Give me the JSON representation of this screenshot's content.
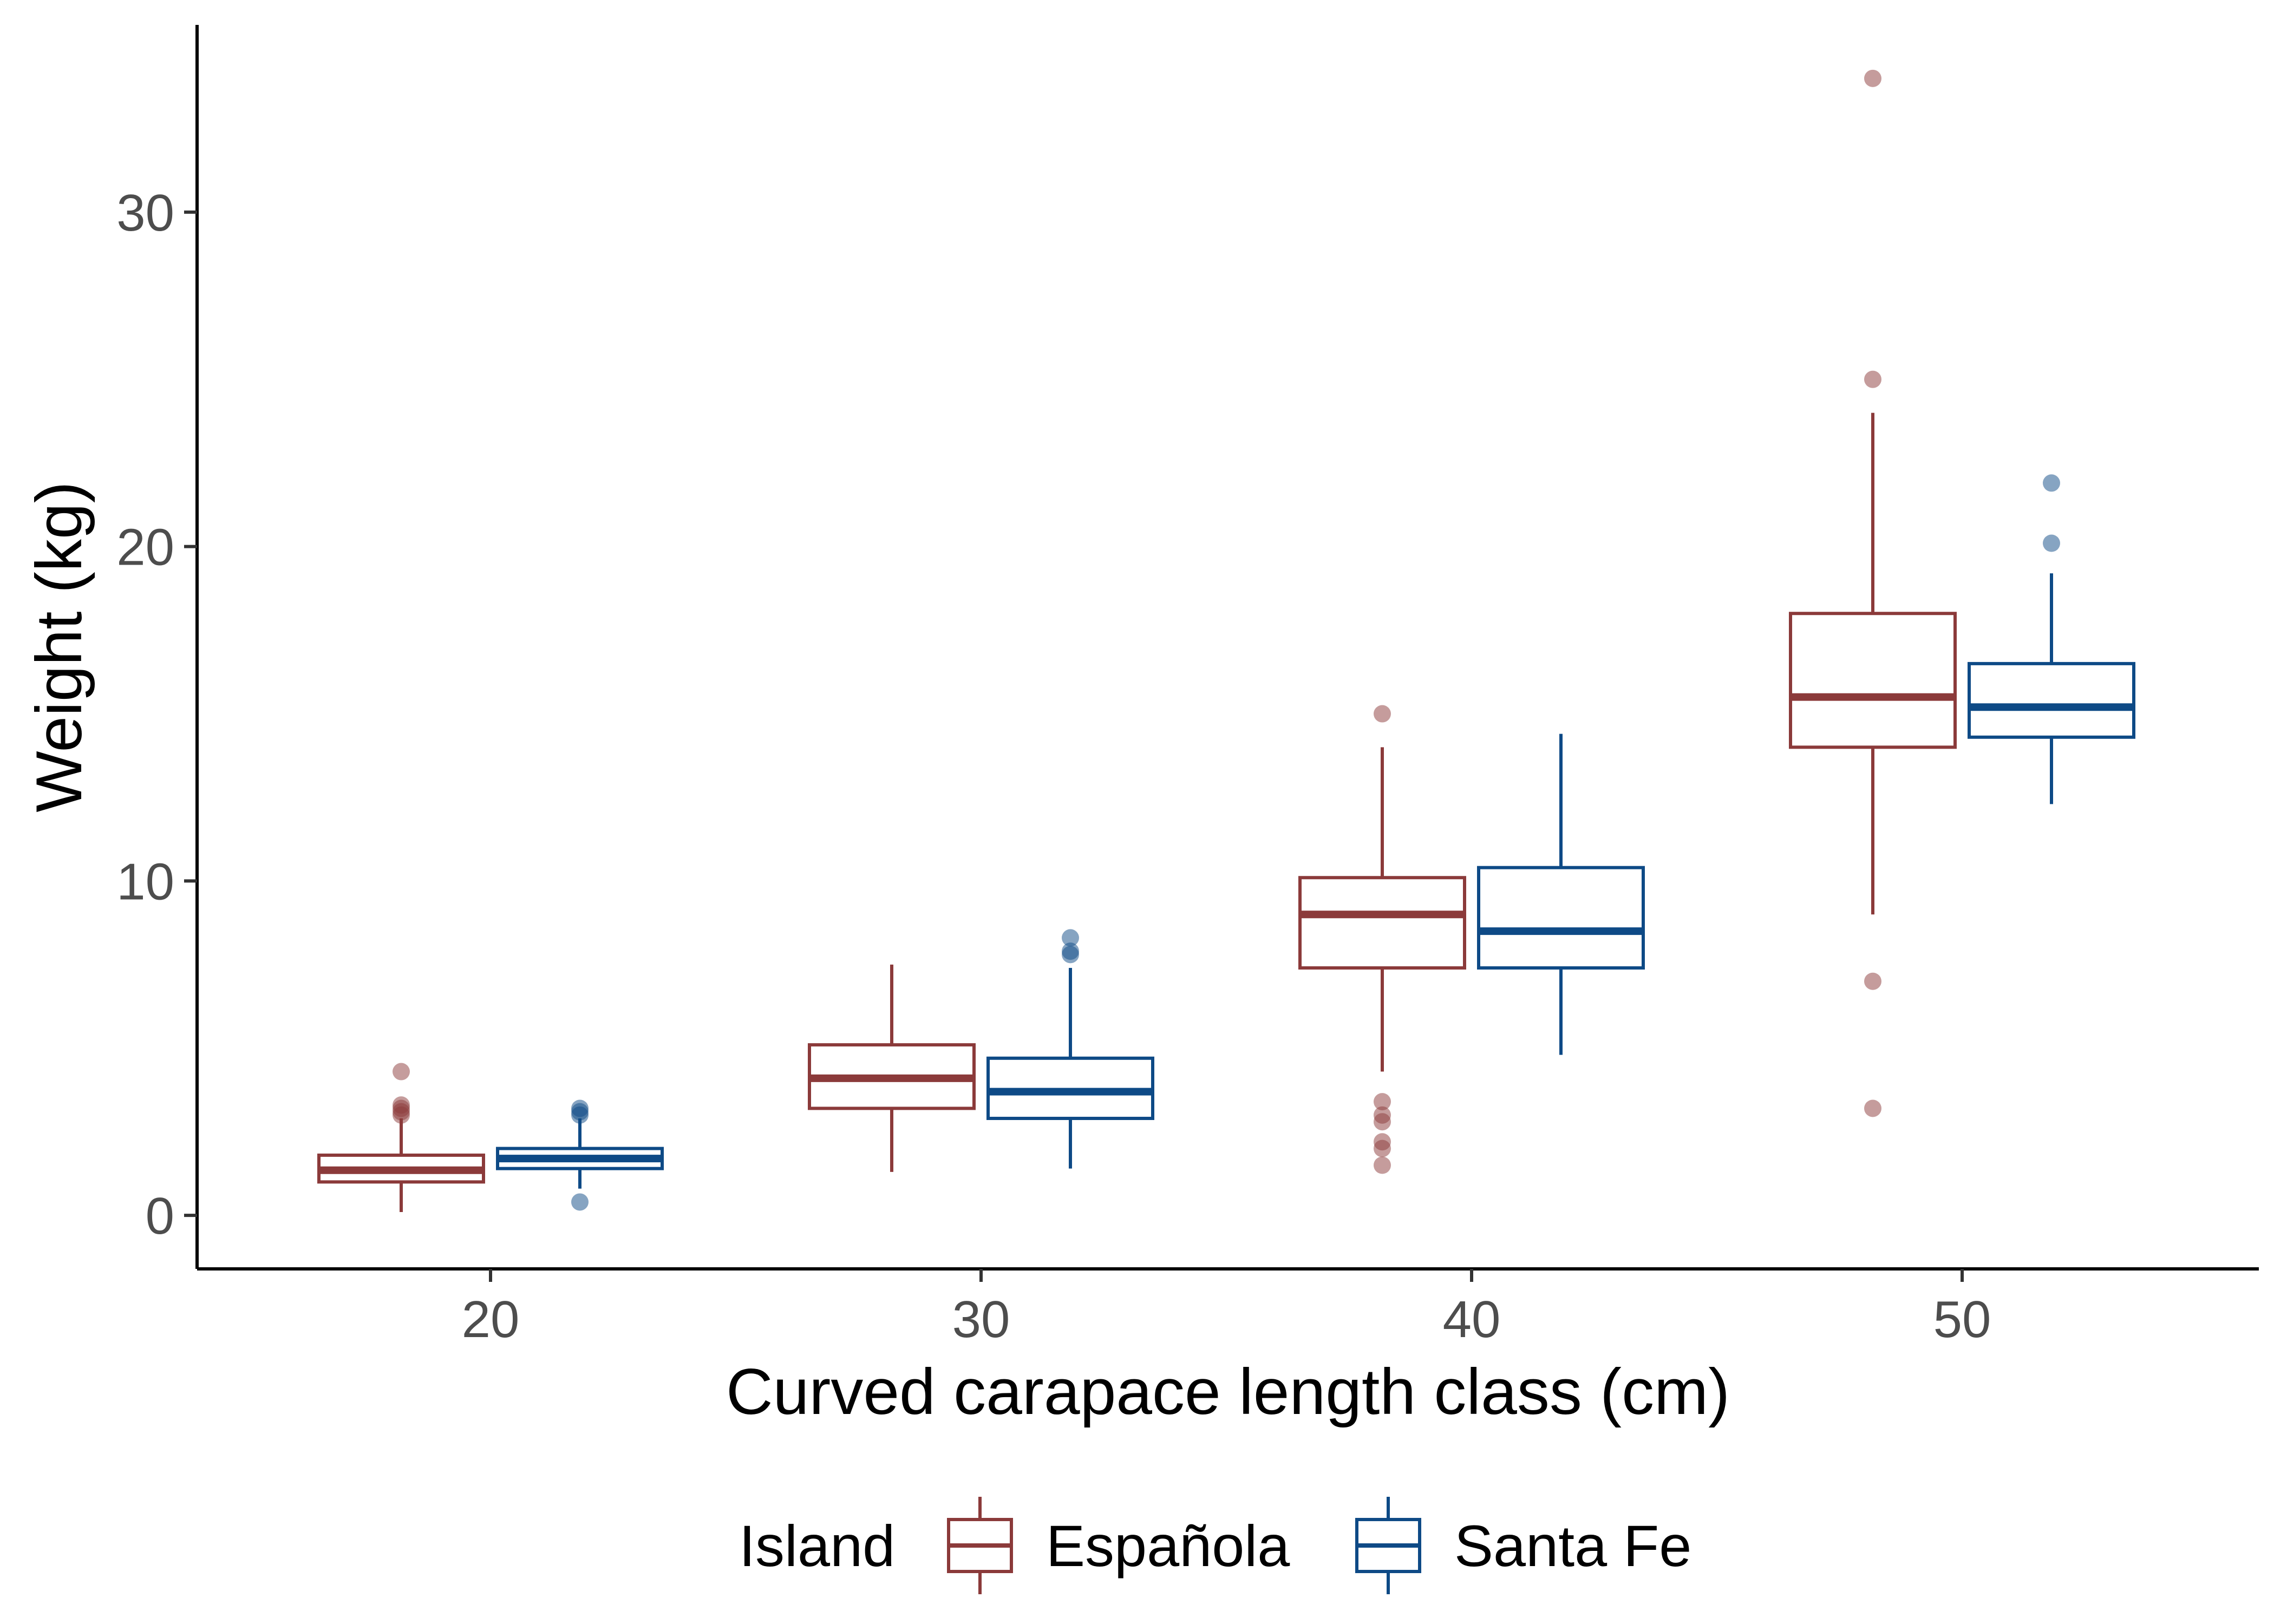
{
  "chart_data": {
    "type": "boxplot",
    "title": "",
    "xlabel": "Curved carapace length class (cm)",
    "ylabel": "Weight (kg)",
    "categories": [
      "20",
      "30",
      "40",
      "50"
    ],
    "ylim": [
      -1.6,
      35.6
    ],
    "yticks": [
      0,
      10,
      20,
      30
    ],
    "grid": false,
    "legend": {
      "title": "Island",
      "placement": "bottom"
    },
    "series": [
      {
        "name": "Española",
        "color": "#8B3A3A",
        "boxes": [
          {
            "category": "20",
            "whisker_low": 0.1,
            "q1": 1.0,
            "median": 1.35,
            "q3": 1.8,
            "whisker_high": 2.9,
            "outliers": [
              3.0,
              3.1,
              3.2,
              3.3,
              4.3
            ]
          },
          {
            "category": "30",
            "whisker_low": 1.3,
            "q1": 3.2,
            "median": 4.1,
            "q3": 5.1,
            "whisker_high": 7.5,
            "outliers": []
          },
          {
            "category": "40",
            "whisker_low": 4.3,
            "q1": 7.4,
            "median": 9.0,
            "q3": 10.1,
            "whisker_high": 14.0,
            "outliers": [
              15.0,
              3.4,
              3.0,
              2.8,
              2.2,
              2.0,
              1.5
            ]
          },
          {
            "category": "50",
            "whisker_low": 9.0,
            "q1": 14.0,
            "median": 15.5,
            "q3": 18.0,
            "whisker_high": 24.0,
            "outliers": [
              34.0,
              25.0,
              7.0,
              3.2
            ]
          }
        ]
      },
      {
        "name": "Santa Fe",
        "color": "#0E4A86",
        "boxes": [
          {
            "category": "20",
            "whisker_low": 0.8,
            "q1": 1.4,
            "median": 1.7,
            "q3": 2.0,
            "whisker_high": 2.9,
            "outliers": [
              3.0,
              3.1,
              3.2,
              0.4
            ]
          },
          {
            "category": "30",
            "whisker_low": 1.4,
            "q1": 2.9,
            "median": 3.7,
            "q3": 4.7,
            "whisker_high": 7.4,
            "outliers": [
              7.8,
              7.9,
              8.3
            ]
          },
          {
            "category": "40",
            "whisker_low": 4.8,
            "q1": 7.4,
            "median": 8.5,
            "q3": 10.4,
            "whisker_high": 14.4,
            "outliers": []
          },
          {
            "category": "50",
            "whisker_low": 12.3,
            "q1": 14.3,
            "median": 15.2,
            "q3": 16.5,
            "whisker_high": 19.2,
            "outliers": [
              20.1,
              21.9
            ]
          }
        ]
      }
    ]
  }
}
